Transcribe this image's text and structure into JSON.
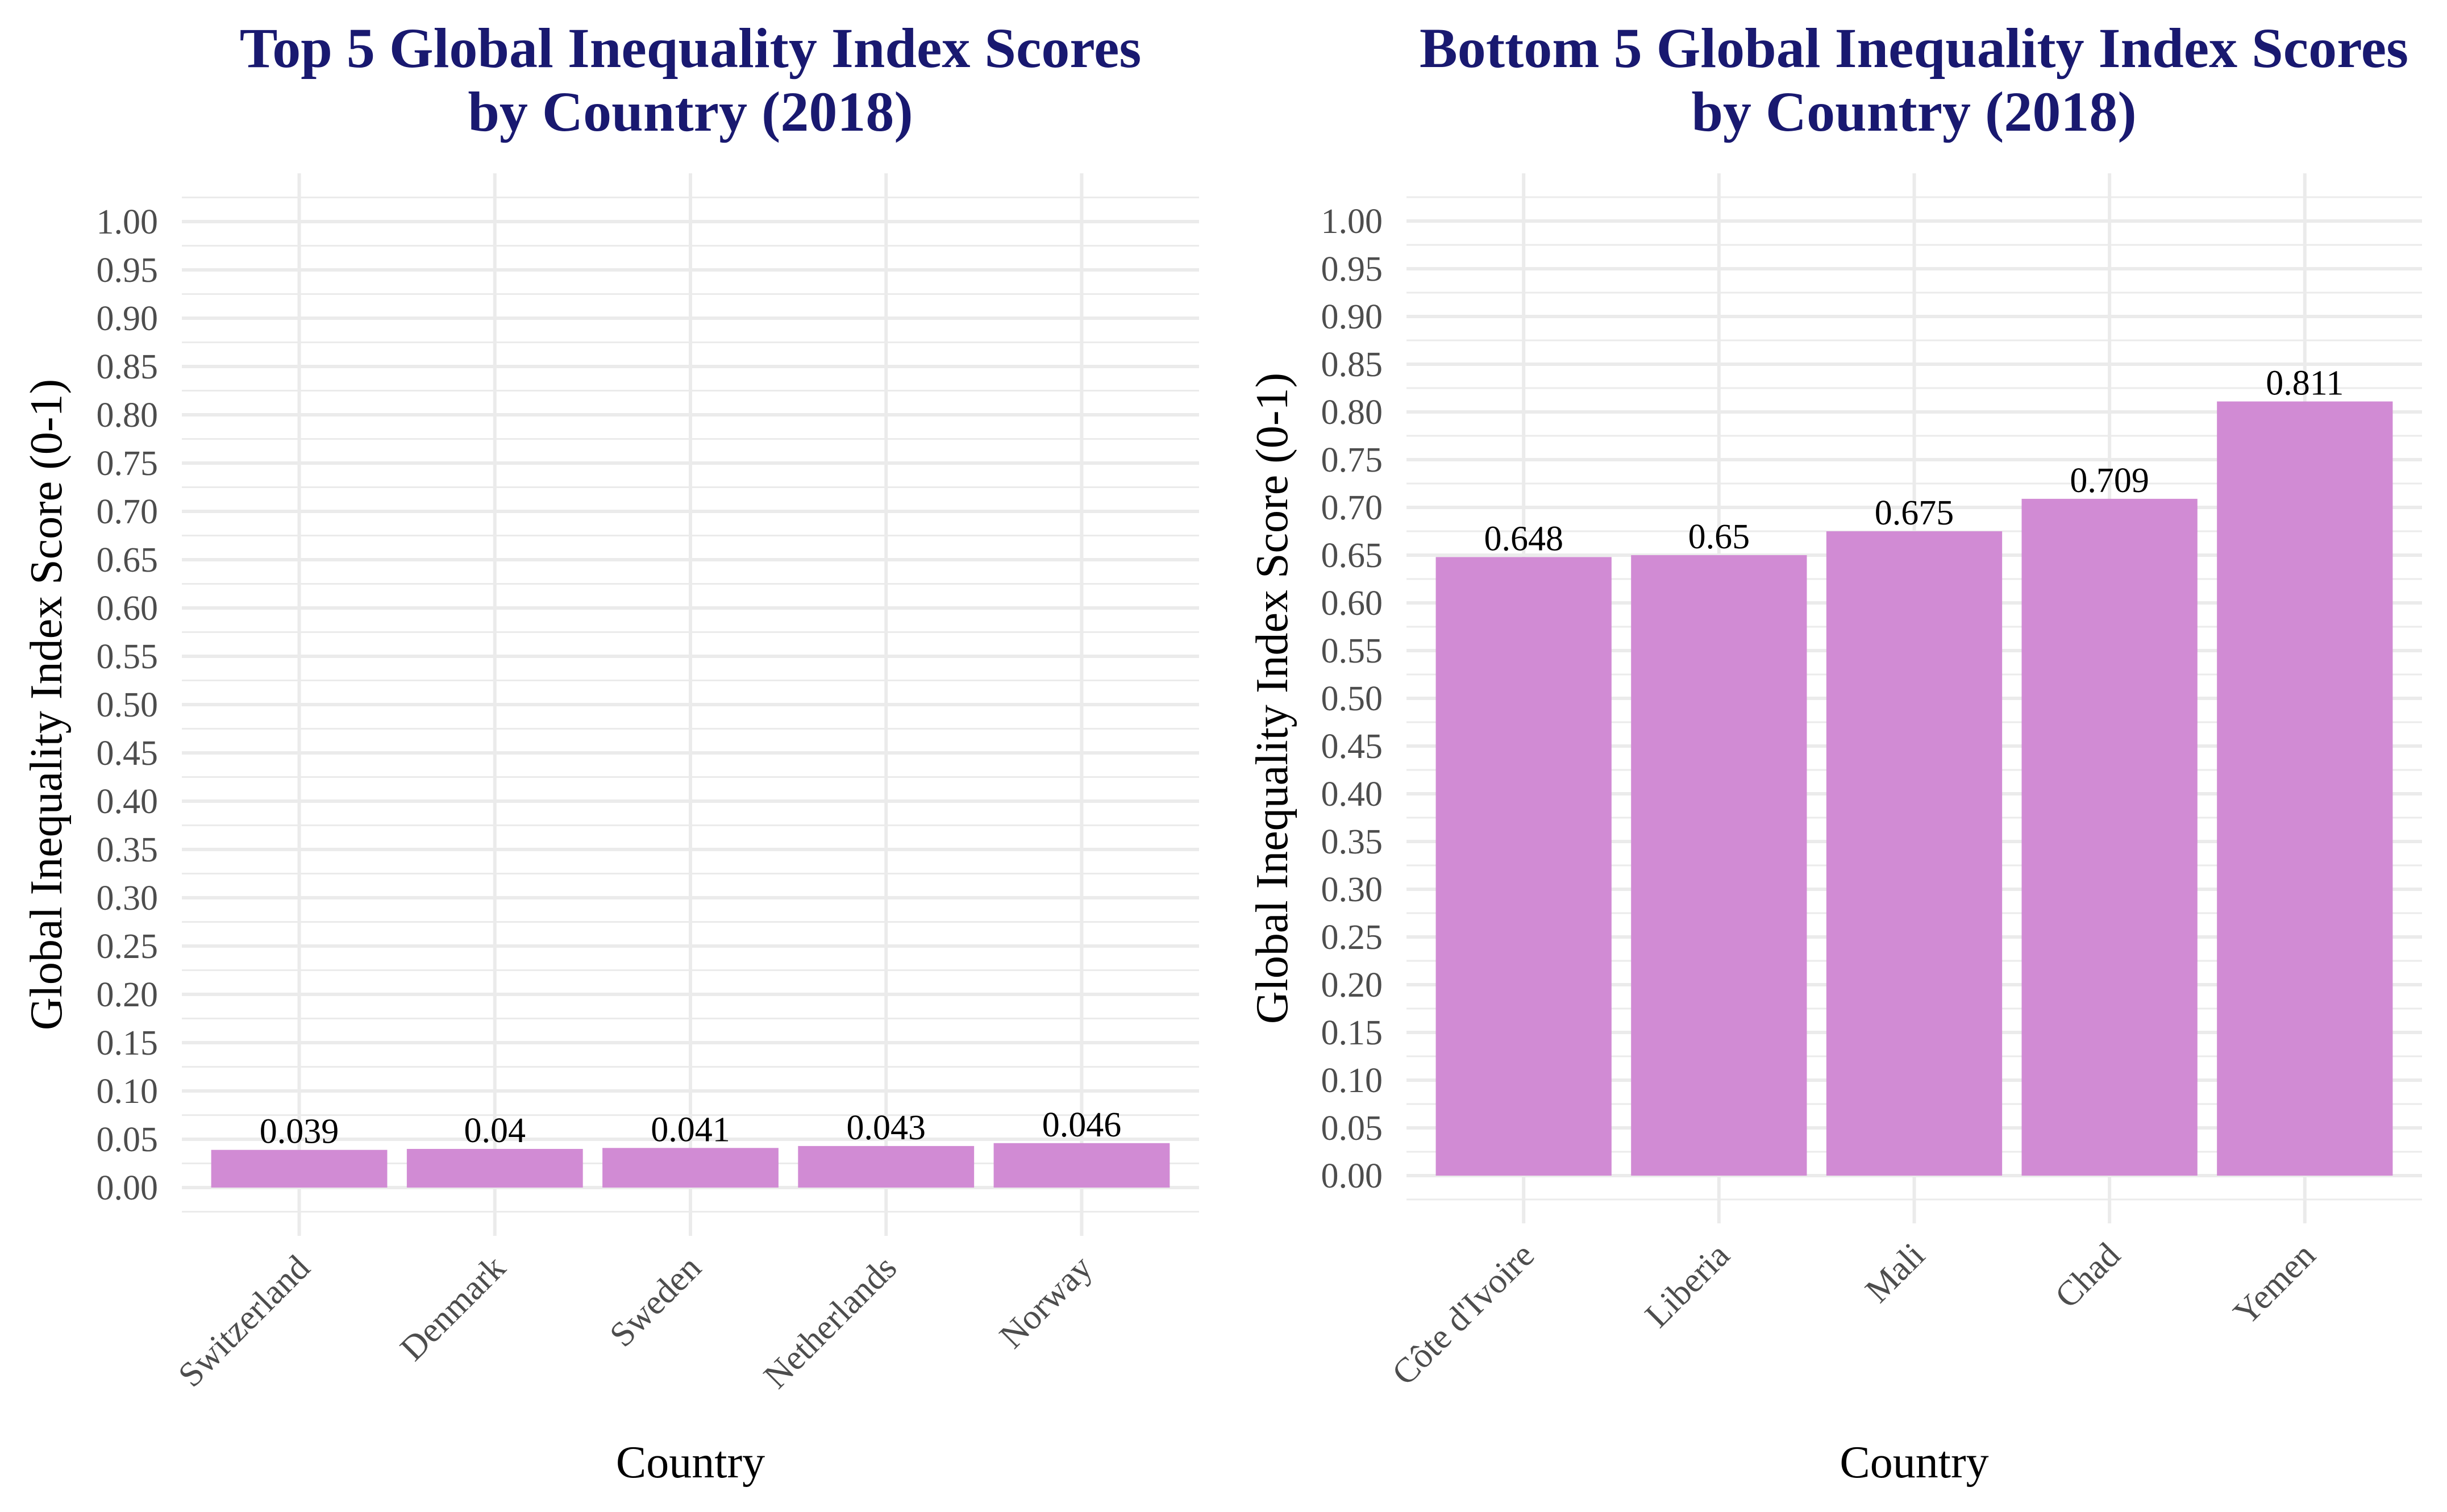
{
  "chart_data": [
    {
      "type": "bar",
      "title": "Top 5 Global Inequality Index Scores\nby Country (2018)",
      "xlabel": "Country",
      "ylabel": "Global Inequality Index Score (0-1)",
      "categories": [
        "Switzerland",
        "Denmark",
        "Sweden",
        "Netherlands",
        "Norway"
      ],
      "values": [
        0.039,
        0.04,
        0.041,
        0.043,
        0.046
      ],
      "data_labels": [
        "0.039",
        "0.04",
        "0.041",
        "0.043",
        "0.046"
      ],
      "ylim": [
        0,
        1
      ],
      "yticks": [
        "0.00",
        "0.05",
        "0.10",
        "0.15",
        "0.20",
        "0.25",
        "0.30",
        "0.35",
        "0.40",
        "0.45",
        "0.50",
        "0.55",
        "0.60",
        "0.65",
        "0.70",
        "0.75",
        "0.80",
        "0.85",
        "0.90",
        "0.95",
        "1.00"
      ],
      "bar_color": "#D18BD4",
      "grid": true,
      "x_tick_rotation": "45"
    },
    {
      "type": "bar",
      "title": "Bottom 5 Global Inequality Index Scores\nby Country (2018)",
      "xlabel": "Country",
      "ylabel": "Global Inequality Index Score (0-1)",
      "categories": [
        "Côte d'Ivoire",
        "Liberia",
        "Mali",
        "Chad",
        "Yemen"
      ],
      "values": [
        0.648,
        0.65,
        0.675,
        0.709,
        0.811
      ],
      "data_labels": [
        "0.648",
        "0.65",
        "0.675",
        "0.709",
        "0.811"
      ],
      "ylim": [
        0,
        1
      ],
      "yticks": [
        "0.00",
        "0.05",
        "0.10",
        "0.15",
        "0.20",
        "0.25",
        "0.30",
        "0.35",
        "0.40",
        "0.45",
        "0.50",
        "0.55",
        "0.60",
        "0.65",
        "0.70",
        "0.75",
        "0.80",
        "0.85",
        "0.90",
        "0.95",
        "1.00"
      ],
      "bar_color": "#D18BD4",
      "grid": true,
      "x_tick_rotation": "45"
    }
  ]
}
